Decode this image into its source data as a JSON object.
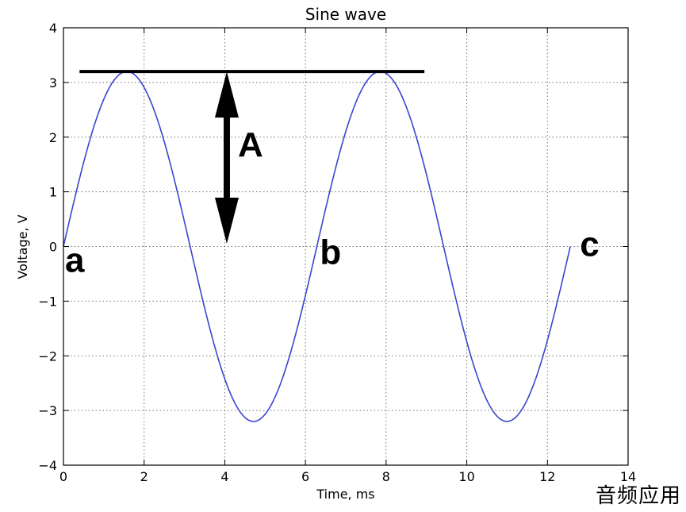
{
  "chart_data": {
    "type": "line",
    "title": "Sine wave",
    "xlabel": "Time, ms",
    "ylabel": "Voltage, V",
    "xlim": [
      0,
      14
    ],
    "ylim": [
      -4,
      4
    ],
    "xticks": [
      0,
      2,
      4,
      6,
      8,
      10,
      12,
      14
    ],
    "yticks": [
      -4,
      -3,
      -2,
      -1,
      0,
      1,
      2,
      3,
      4
    ],
    "xtick_labels": [
      "0",
      "2",
      "4",
      "6",
      "8",
      "10",
      "12",
      "14"
    ],
    "ytick_labels": [
      "−4",
      "−3",
      "−2",
      "−1",
      "0",
      "1",
      "2",
      "3",
      "4"
    ],
    "grid": true,
    "series": [
      {
        "amplitude": 3.2,
        "x_start": 0,
        "x_end": 12.566,
        "x": [
          0,
          0.785,
          1.571,
          2.356,
          3.142,
          3.927,
          4.712,
          5.498,
          6.283,
          7.069,
          7.854,
          8.639,
          9.425,
          10.21,
          10.996,
          11.781,
          12.566
        ],
        "y": [
          0,
          2.26,
          3.2,
          2.26,
          0,
          -2.26,
          -3.2,
          -2.26,
          0,
          2.26,
          3.2,
          2.26,
          0,
          -2.26,
          -3.2,
          -2.26,
          0
        ],
        "color": "#3b45cf"
      }
    ],
    "annotations": {
      "hline": {
        "y": 3.2,
        "x_start": 0.4,
        "x_end": 8.95,
        "color": "#000000"
      },
      "arrow": {
        "x": 4.05,
        "y_top": 3.2,
        "y_bottom": 0.05,
        "label": "A"
      },
      "points": [
        {
          "label": "a",
          "x": 0,
          "y": 0
        },
        {
          "label": "b",
          "x": 6.28,
          "y": 0
        },
        {
          "label": "c",
          "x": 12.57,
          "y": 0
        }
      ]
    }
  },
  "watermark": "音频应用"
}
